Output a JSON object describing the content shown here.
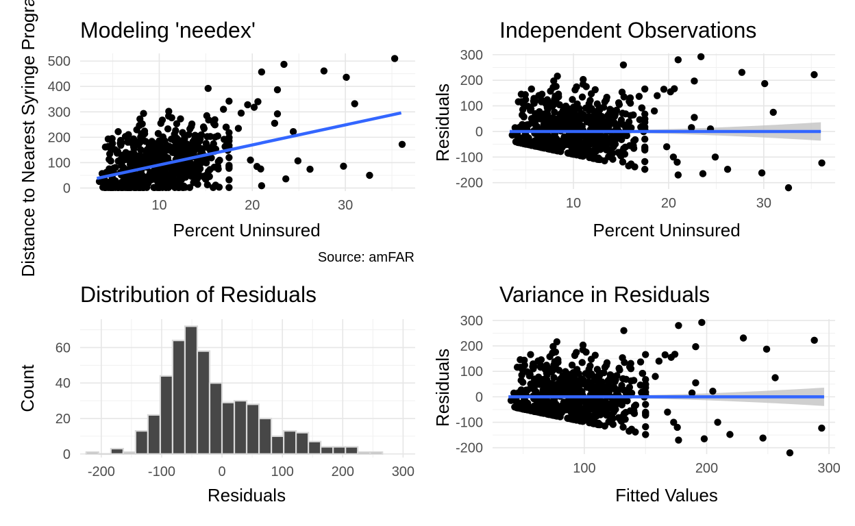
{
  "chart_data": [
    {
      "id": "needex",
      "type": "scatter",
      "title": "Modeling 'needex'",
      "xlabel": "Percent Uninsured",
      "ylabel": "Distance to Nearest Syringe Progra",
      "caption": "Source: amFAR",
      "xlim": [
        1.5,
        37.5
      ],
      "ylim": [
        -12,
        530
      ],
      "xticks": [
        10,
        20,
        30
      ],
      "yticks": [
        0,
        100,
        200,
        300,
        400,
        500
      ],
      "fit_line": {
        "x": [
          3.3,
          36
        ],
        "y": [
          38,
          296
        ]
      },
      "points_outliers": [
        [
          35.3,
          510
        ],
        [
          36.1,
          172
        ],
        [
          32.6,
          50
        ],
        [
          31.0,
          332
        ],
        [
          30.1,
          436
        ],
        [
          29.8,
          86
        ],
        [
          27.7,
          461
        ],
        [
          26.2,
          74
        ],
        [
          24.9,
          107
        ],
        [
          24.4,
          222
        ],
        [
          23.6,
          36
        ],
        [
          23.4,
          487
        ],
        [
          22.7,
          387
        ],
        [
          22.7,
          292
        ],
        [
          22.4,
          255
        ],
        [
          21.0,
          457
        ],
        [
          21.0,
          9
        ],
        [
          20.9,
          75
        ],
        [
          20.6,
          340
        ],
        [
          20.5,
          85
        ],
        [
          20.2,
          318
        ],
        [
          19.8,
          110
        ],
        [
          19.5,
          328
        ],
        [
          18.8,
          295
        ],
        [
          18.5,
          235
        ],
        [
          17.5,
          342
        ],
        [
          16.9,
          310
        ]
      ],
      "cloud": {
        "x_range": [
          3.3,
          17.5
        ],
        "count": 600
      }
    },
    {
      "id": "indep",
      "type": "scatter",
      "title": "Independent Observations",
      "xlabel": "Percent Uninsured",
      "ylabel": "Residuals",
      "xlim": [
        1.5,
        37.5
      ],
      "ylim": [
        -225,
        305
      ],
      "xticks": [
        10,
        20,
        30
      ],
      "yticks": [
        -200,
        -100,
        0,
        100,
        200,
        300
      ],
      "fit_line": {
        "x": [
          3.3,
          36
        ],
        "y": [
          0,
          0
        ]
      },
      "band": {
        "x": [
          3.3,
          36
        ],
        "halfwidth_left": 6,
        "halfwidth_right": 36
      },
      "points_outliers": [
        [
          35.3,
          222
        ],
        [
          36.1,
          -123
        ],
        [
          32.6,
          -220
        ],
        [
          31.0,
          75
        ],
        [
          30.1,
          187
        ],
        [
          29.8,
          -162
        ],
        [
          27.7,
          231
        ],
        [
          26.2,
          -148
        ],
        [
          24.9,
          -100
        ],
        [
          24.4,
          10
        ],
        [
          23.6,
          -165
        ],
        [
          23.4,
          292
        ],
        [
          22.7,
          197
        ],
        [
          22.7,
          55
        ],
        [
          22.4,
          15
        ],
        [
          21.0,
          280
        ],
        [
          21.0,
          -170
        ],
        [
          20.9,
          -120
        ],
        [
          20.6,
          167
        ],
        [
          20.5,
          -100
        ],
        [
          20.2,
          155
        ],
        [
          19.8,
          -60
        ],
        [
          19.5,
          165
        ],
        [
          18.8,
          140
        ],
        [
          18.5,
          80
        ],
        [
          17.5,
          166
        ],
        [
          16.9,
          137
        ]
      ],
      "cloud": {
        "x_range": [
          3.3,
          17.5
        ],
        "count": 600
      }
    },
    {
      "id": "hist",
      "type": "bar",
      "title": "Distribution of Residuals",
      "xlabel": "Residuals",
      "ylabel": "Count",
      "xlim": [
        -235,
        320
      ],
      "ylim": [
        -2,
        76
      ],
      "xticks": [
        -200,
        -100,
        0,
        100,
        200,
        300
      ],
      "yticks": [
        0,
        20,
        40,
        60
      ],
      "bin_width": 20.45,
      "bin_start": -225,
      "values": [
        1,
        0,
        3,
        1,
        13,
        22,
        44,
        64,
        72,
        58,
        40,
        29,
        30,
        28,
        20,
        10,
        13,
        12,
        7,
        4,
        4,
        4,
        1,
        1
      ]
    },
    {
      "id": "variance",
      "type": "scatter",
      "title": "Variance in Residuals",
      "xlabel": "Fitted Values",
      "ylabel": "Residuals",
      "xlim": [
        25,
        305
      ],
      "ylim": [
        -225,
        305
      ],
      "xticks": [
        100,
        200,
        300
      ],
      "yticks": [
        -200,
        -100,
        0,
        100,
        200,
        300
      ],
      "fit_line": {
        "x": [
          38,
          296
        ],
        "y": [
          0,
          0
        ]
      },
      "band": {
        "x": [
          38,
          296
        ],
        "halfwidth_left": 6,
        "halfwidth_right": 36
      },
      "points_outliers": [
        [
          288,
          222
        ],
        [
          294,
          -123
        ],
        [
          268,
          -220
        ],
        [
          256,
          75
        ],
        [
          249,
          187
        ],
        [
          246,
          -162
        ],
        [
          230,
          231
        ],
        [
          219,
          -148
        ],
        [
          209,
          -100
        ],
        [
          205,
          22
        ],
        [
          198,
          -165
        ],
        [
          196,
          292
        ],
        [
          191,
          197
        ],
        [
          191,
          55
        ],
        [
          188,
          15
        ],
        [
          177,
          280
        ],
        [
          177,
          -170
        ],
        [
          176,
          -120
        ],
        [
          174,
          167
        ],
        [
          173,
          -100
        ],
        [
          171,
          155
        ],
        [
          168,
          -60
        ],
        [
          166,
          165
        ],
        [
          161,
          140
        ],
        [
          158,
          80
        ],
        [
          150,
          166
        ],
        [
          146,
          137
        ]
      ],
      "cloud": {
        "x_range": [
          38,
          150
        ],
        "count": 600
      }
    }
  ],
  "colors": {
    "points": "#000000",
    "fit_line": "#3366ff",
    "band": "#bfbfbf",
    "bar_fill": "#474747",
    "bar_outline": "#d9d9d9"
  }
}
